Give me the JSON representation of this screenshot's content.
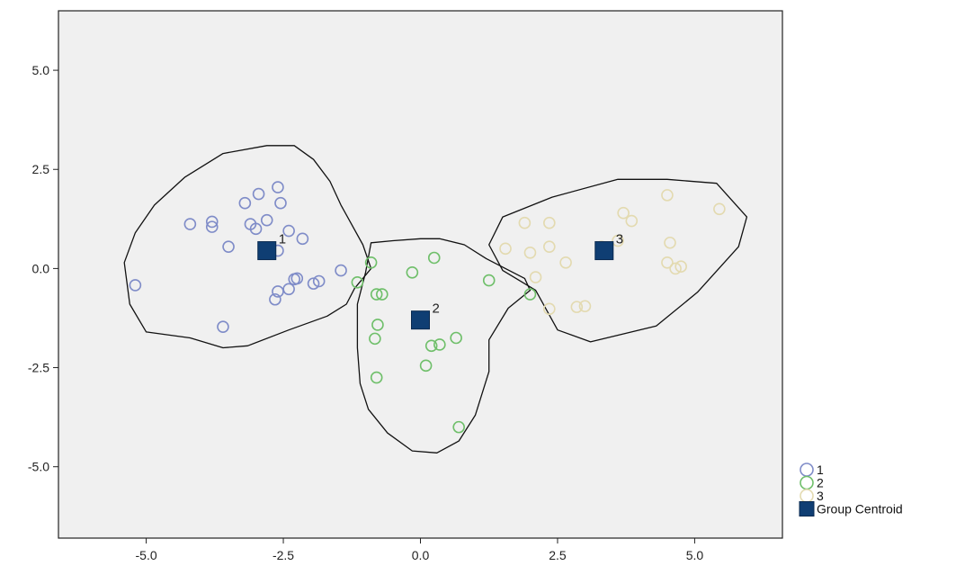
{
  "chart_data": {
    "type": "scatter",
    "xlim": [
      -6.6,
      6.6
    ],
    "ylim": [
      -6.8,
      6.5
    ],
    "x_ticks": [
      -5.0,
      -2.5,
      0.0,
      2.5,
      5.0
    ],
    "x_tick_labels": [
      "-5.0",
      "-2.5",
      "0.0",
      "2.5",
      "5.0"
    ],
    "y_ticks": [
      5.0,
      2.5,
      0.0,
      -2.5,
      -5.0
    ],
    "y_tick_labels": [
      "5.0",
      "2.5",
      "0.0",
      "-2.5",
      "-5.0"
    ],
    "grid": false,
    "legend_position": "bottom-right, outside plot",
    "plot_background": "#f0f0f0",
    "series": [
      {
        "name": "1",
        "color": "#7f8cc8",
        "marker": "open-circle",
        "points": [
          [
            -5.2,
            -0.42
          ],
          [
            -4.2,
            1.12
          ],
          [
            -3.8,
            1.18
          ],
          [
            -3.8,
            1.05
          ],
          [
            -3.5,
            0.55
          ],
          [
            -3.6,
            -1.47
          ],
          [
            -3.2,
            1.65
          ],
          [
            -3.1,
            1.12
          ],
          [
            -2.95,
            1.88
          ],
          [
            -3.0,
            1.0
          ],
          [
            -2.8,
            1.22
          ],
          [
            -2.6,
            2.05
          ],
          [
            -2.55,
            1.65
          ],
          [
            -2.4,
            0.95
          ],
          [
            -2.15,
            0.75
          ],
          [
            -2.6,
            0.45
          ],
          [
            -2.6,
            -0.58
          ],
          [
            -2.65,
            -0.78
          ],
          [
            -2.4,
            -0.52
          ],
          [
            -2.3,
            -0.27
          ],
          [
            -2.25,
            -0.25
          ],
          [
            -1.95,
            -0.38
          ],
          [
            -1.85,
            -0.32
          ],
          [
            -1.45,
            -0.05
          ],
          [
            -2.85,
            0.5
          ]
        ]
      },
      {
        "name": "2",
        "color": "#6fbf6a",
        "marker": "open-circle",
        "points": [
          [
            -0.9,
            0.15
          ],
          [
            -1.15,
            -0.35
          ],
          [
            -0.8,
            -0.65
          ],
          [
            -0.7,
            -0.65
          ],
          [
            -0.78,
            -1.42
          ],
          [
            -0.83,
            -1.77
          ],
          [
            -0.8,
            -2.75
          ],
          [
            -0.15,
            -0.1
          ],
          [
            0.25,
            0.27
          ],
          [
            0.2,
            -1.95
          ],
          [
            0.35,
            -1.92
          ],
          [
            0.65,
            -1.75
          ],
          [
            0.1,
            -2.45
          ],
          [
            0.7,
            -4.0
          ],
          [
            1.25,
            -0.3
          ],
          [
            2.0,
            -0.65
          ]
        ]
      },
      {
        "name": "3",
        "color": "#e3dab0",
        "marker": "open-circle",
        "points": [
          [
            1.55,
            0.5
          ],
          [
            1.9,
            1.15
          ],
          [
            2.35,
            1.15
          ],
          [
            2.0,
            0.4
          ],
          [
            2.35,
            0.55
          ],
          [
            2.65,
            0.15
          ],
          [
            2.1,
            -0.22
          ],
          [
            2.35,
            -1.02
          ],
          [
            2.85,
            -0.97
          ],
          [
            3.0,
            -0.95
          ],
          [
            3.7,
            1.4
          ],
          [
            3.85,
            1.2
          ],
          [
            4.5,
            1.85
          ],
          [
            3.6,
            0.7
          ],
          [
            4.55,
            0.65
          ],
          [
            4.5,
            0.15
          ],
          [
            4.65,
            0.0
          ],
          [
            4.75,
            0.05
          ],
          [
            5.45,
            1.5
          ],
          [
            3.3,
            0.55
          ]
        ]
      },
      {
        "name": "Group Centroid",
        "color": "#0f3e73",
        "marker": "filled-square",
        "points": [
          [
            -2.8,
            0.45
          ],
          [
            0.0,
            -1.3
          ],
          [
            3.35,
            0.45
          ]
        ],
        "labels": [
          "1",
          "2",
          "3"
        ]
      }
    ],
    "regions": [
      {
        "group": "1",
        "outline": [
          [
            -5.4,
            0.15
          ],
          [
            -5.2,
            0.9
          ],
          [
            -4.85,
            1.6
          ],
          [
            -4.3,
            2.3
          ],
          [
            -3.6,
            2.9
          ],
          [
            -2.8,
            3.1
          ],
          [
            -2.3,
            3.1
          ],
          [
            -1.95,
            2.75
          ],
          [
            -1.65,
            2.2
          ],
          [
            -1.45,
            1.6
          ],
          [
            -1.05,
            0.6
          ],
          [
            -0.9,
            0.0
          ],
          [
            -1.2,
            -0.5
          ],
          [
            -1.35,
            -0.9
          ],
          [
            -1.7,
            -1.2
          ],
          [
            -2.4,
            -1.55
          ],
          [
            -3.15,
            -1.95
          ],
          [
            -3.6,
            -2.0
          ],
          [
            -4.2,
            -1.75
          ],
          [
            -5.0,
            -1.6
          ],
          [
            -5.3,
            -0.9
          ],
          [
            -5.4,
            0.15
          ]
        ]
      },
      {
        "group": "2",
        "outline": [
          [
            -0.9,
            0.65
          ],
          [
            -0.5,
            0.7
          ],
          [
            0.0,
            0.75
          ],
          [
            0.35,
            0.75
          ],
          [
            0.8,
            0.6
          ],
          [
            1.2,
            0.25
          ],
          [
            1.55,
            0.0
          ],
          [
            1.9,
            -0.25
          ],
          [
            2.0,
            -0.55
          ],
          [
            1.6,
            -1.0
          ],
          [
            1.25,
            -1.8
          ],
          [
            1.25,
            -2.6
          ],
          [
            1.0,
            -3.7
          ],
          [
            0.7,
            -4.35
          ],
          [
            0.3,
            -4.65
          ],
          [
            -0.15,
            -4.6
          ],
          [
            -0.6,
            -4.15
          ],
          [
            -0.95,
            -3.55
          ],
          [
            -1.1,
            -2.9
          ],
          [
            -1.15,
            -2.0
          ],
          [
            -1.15,
            -0.9
          ],
          [
            -1.0,
            -0.1
          ],
          [
            -0.9,
            0.65
          ]
        ]
      },
      {
        "group": "3",
        "outline": [
          [
            1.5,
            -0.05
          ],
          [
            1.25,
            0.6
          ],
          [
            1.5,
            1.3
          ],
          [
            2.4,
            1.8
          ],
          [
            3.6,
            2.25
          ],
          [
            4.5,
            2.25
          ],
          [
            5.4,
            2.15
          ],
          [
            5.95,
            1.3
          ],
          [
            5.8,
            0.55
          ],
          [
            5.05,
            -0.6
          ],
          [
            4.3,
            -1.45
          ],
          [
            3.1,
            -1.85
          ],
          [
            2.5,
            -1.55
          ],
          [
            2.1,
            -0.55
          ],
          [
            1.5,
            -0.05
          ]
        ]
      }
    ]
  }
}
